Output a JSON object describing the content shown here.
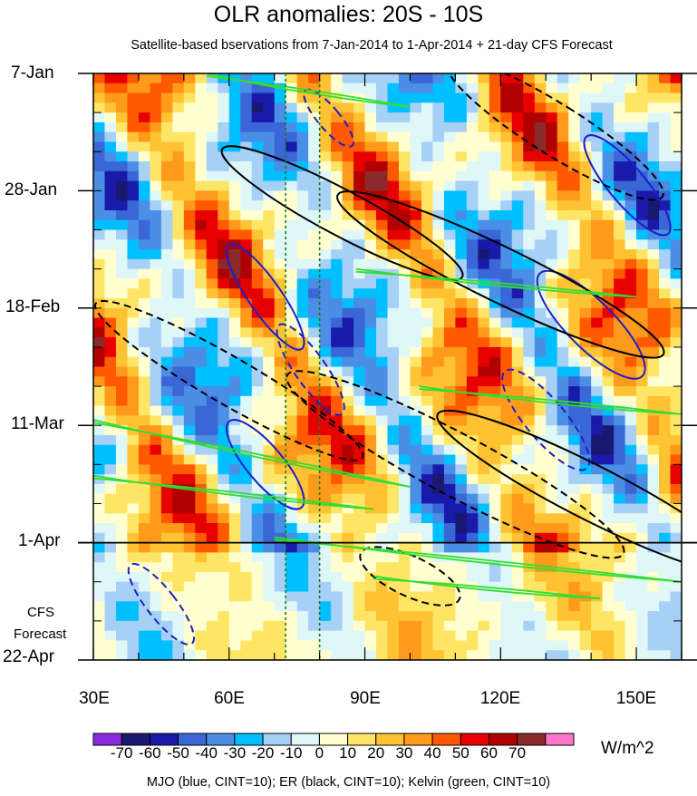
{
  "chart_data": {
    "type": "heatmap",
    "title": "OLR anomalies: 20S - 10S",
    "subtitle": "Satellite-based bservations from 7-Jan-2014 to 1-Apr-2014 + 21-day CFS Forecast",
    "x_tick_labels": [
      "30E",
      "60E",
      "90E",
      "120E",
      "150E"
    ],
    "x_tick_values": [
      30,
      60,
      90,
      120,
      150
    ],
    "xlim": [
      30,
      160
    ],
    "y_tick_labels": [
      "7-Jan",
      "28-Jan",
      "18-Feb",
      "11-Mar",
      "1-Apr",
      "22-Apr"
    ],
    "y_tick_days": [
      0,
      21,
      42,
      63,
      84,
      105
    ],
    "ylim_days": [
      0,
      105
    ],
    "observation_end_day": 84,
    "forecast_label_1": "CFS",
    "forecast_label_2": "Forecast",
    "reference_longitudes": [
      72.5,
      80
    ],
    "colorbar": {
      "labels": [
        "-70",
        "-60",
        "-50",
        "-40",
        "-30",
        "-20",
        "-10",
        "0",
        "10",
        "20",
        "30",
        "40",
        "50",
        "60",
        "70"
      ],
      "colors": [
        "#8a2be2",
        "#191970",
        "#1a1aaa",
        "#3a66d6",
        "#4a8ee6",
        "#00bfff",
        "#a6d0f5",
        "#e0f7f7",
        "#ffffd0",
        "#ffe566",
        "#ffc233",
        "#ff9a1a",
        "#ff5a00",
        "#e60000",
        "#b00000",
        "#8b2a2a",
        "#ff77c8"
      ],
      "units": "W/m^2"
    },
    "overlays": [
      {
        "name": "MJO",
        "color": "#1e1ec8"
      },
      {
        "name": "ER",
        "color": "#000000"
      },
      {
        "name": "Kelvin",
        "color": "#33dd33"
      }
    ],
    "footer": "MJO (blue, CINT=10); ER (black, CINT=10); Kelvin (green, CINT=10)"
  }
}
